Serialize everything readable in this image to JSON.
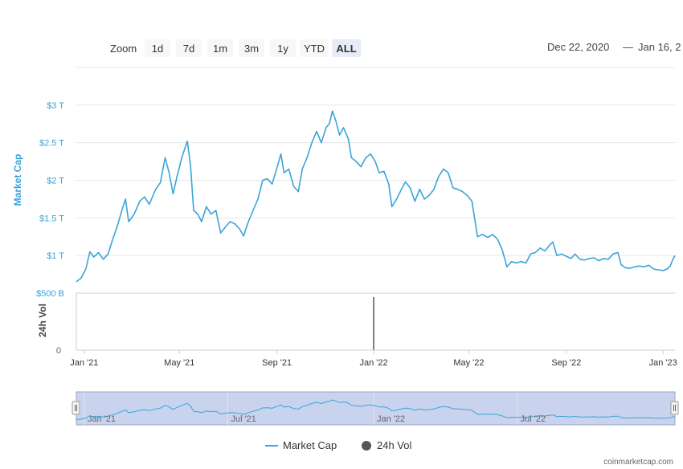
{
  "zoom": {
    "label": "Zoom",
    "buttons": [
      "1d",
      "7d",
      "1m",
      "3m",
      "1y",
      "YTD",
      "ALL"
    ],
    "selected": "ALL"
  },
  "range": {
    "from": "Dec 22, 2020",
    "separator": "—",
    "to": "Jan 16, 2"
  },
  "credit": "coinmarketcap.com",
  "legend": {
    "market_cap": "Market Cap",
    "volume": "24h Vol"
  },
  "colors": {
    "market_cap": "#3aa4d8",
    "volume": "#555555",
    "navigator_fill": "#c9d3ee",
    "grid": "#e6e6e6"
  },
  "chart_data": {
    "type": "line",
    "yaxis_label": "Market Cap",
    "yaxis_ticks": [
      {
        "value": 0.5,
        "label": "$500 B"
      },
      {
        "value": 1.0,
        "label": "$1 T"
      },
      {
        "value": 1.5,
        "label": "$1.5 T"
      },
      {
        "value": 2.0,
        "label": "$2 T"
      },
      {
        "value": 2.5,
        "label": "$2.5 T"
      },
      {
        "value": 3.0,
        "label": "$3 T"
      }
    ],
    "ylim": [
      0.5,
      3.5
    ],
    "volume_axis_label": "24h Vol",
    "volume_ticks": [
      {
        "value": 0,
        "label": "0"
      }
    ],
    "xlim": [
      "2020-12-22",
      "2023-01-16"
    ],
    "x_ticks": [
      {
        "date": "2021-01-01",
        "label": "Jan '21"
      },
      {
        "date": "2021-05-01",
        "label": "May '21"
      },
      {
        "date": "2021-09-01",
        "label": "Sep '21"
      },
      {
        "date": "2022-01-01",
        "label": "Jan '22"
      },
      {
        "date": "2022-05-01",
        "label": "May '22"
      },
      {
        "date": "2022-09-01",
        "label": "Sep '22"
      },
      {
        "date": "2023-01-01",
        "label": "Jan '23"
      }
    ],
    "navigator_ticks": [
      {
        "date": "2021-01-01",
        "label": "Jan '21"
      },
      {
        "date": "2021-07-01",
        "label": "Jul '21"
      },
      {
        "date": "2022-01-01",
        "label": "Jan '22"
      },
      {
        "date": "2022-07-01",
        "label": "Jul '22"
      }
    ],
    "series": [
      {
        "name": "Market Cap",
        "unit": "T",
        "points": [
          [
            "2020-12-22",
            0.65
          ],
          [
            "2020-12-28",
            0.7
          ],
          [
            "2021-01-03",
            0.82
          ],
          [
            "2021-01-08",
            1.05
          ],
          [
            "2021-01-13",
            0.98
          ],
          [
            "2021-01-19",
            1.04
          ],
          [
            "2021-01-25",
            0.95
          ],
          [
            "2021-01-31",
            1.02
          ],
          [
            "2021-02-06",
            1.22
          ],
          [
            "2021-02-12",
            1.4
          ],
          [
            "2021-02-18",
            1.62
          ],
          [
            "2021-02-22",
            1.75
          ],
          [
            "2021-02-26",
            1.45
          ],
          [
            "2021-03-05",
            1.55
          ],
          [
            "2021-03-12",
            1.72
          ],
          [
            "2021-03-18",
            1.78
          ],
          [
            "2021-03-24",
            1.68
          ],
          [
            "2021-04-01",
            1.88
          ],
          [
            "2021-04-07",
            1.97
          ],
          [
            "2021-04-13",
            2.3
          ],
          [
            "2021-04-18",
            2.1
          ],
          [
            "2021-04-23",
            1.82
          ],
          [
            "2021-04-28",
            2.05
          ],
          [
            "2021-05-04",
            2.3
          ],
          [
            "2021-05-11",
            2.52
          ],
          [
            "2021-05-15",
            2.2
          ],
          [
            "2021-05-19",
            1.6
          ],
          [
            "2021-05-24",
            1.55
          ],
          [
            "2021-05-29",
            1.45
          ],
          [
            "2021-06-04",
            1.65
          ],
          [
            "2021-06-10",
            1.55
          ],
          [
            "2021-06-16",
            1.6
          ],
          [
            "2021-06-22",
            1.3
          ],
          [
            "2021-06-28",
            1.38
          ],
          [
            "2021-07-04",
            1.45
          ],
          [
            "2021-07-10",
            1.42
          ],
          [
            "2021-07-16",
            1.35
          ],
          [
            "2021-07-21",
            1.26
          ],
          [
            "2021-07-27",
            1.45
          ],
          [
            "2021-08-02",
            1.6
          ],
          [
            "2021-08-08",
            1.75
          ],
          [
            "2021-08-14",
            2.0
          ],
          [
            "2021-08-20",
            2.02
          ],
          [
            "2021-08-26",
            1.95
          ],
          [
            "2021-09-02",
            2.2
          ],
          [
            "2021-09-06",
            2.35
          ],
          [
            "2021-09-10",
            2.1
          ],
          [
            "2021-09-16",
            2.15
          ],
          [
            "2021-09-22",
            1.92
          ],
          [
            "2021-09-28",
            1.85
          ],
          [
            "2021-10-03",
            2.15
          ],
          [
            "2021-10-09",
            2.3
          ],
          [
            "2021-10-15",
            2.5
          ],
          [
            "2021-10-21",
            2.65
          ],
          [
            "2021-10-27",
            2.5
          ],
          [
            "2021-11-02",
            2.7
          ],
          [
            "2021-11-06",
            2.75
          ],
          [
            "2021-11-10",
            2.92
          ],
          [
            "2021-11-14",
            2.8
          ],
          [
            "2021-11-19",
            2.6
          ],
          [
            "2021-11-24",
            2.7
          ],
          [
            "2021-11-30",
            2.55
          ],
          [
            "2021-12-04",
            2.3
          ],
          [
            "2021-12-10",
            2.25
          ],
          [
            "2021-12-16",
            2.18
          ],
          [
            "2021-12-22",
            2.3
          ],
          [
            "2021-12-28",
            2.35
          ],
          [
            "2022-01-03",
            2.25
          ],
          [
            "2022-01-08",
            2.1
          ],
          [
            "2022-01-14",
            2.12
          ],
          [
            "2022-01-20",
            1.95
          ],
          [
            "2022-01-24",
            1.65
          ],
          [
            "2022-01-30",
            1.75
          ],
          [
            "2022-02-05",
            1.88
          ],
          [
            "2022-02-10",
            1.98
          ],
          [
            "2022-02-16",
            1.9
          ],
          [
            "2022-02-22",
            1.72
          ],
          [
            "2022-02-28",
            1.88
          ],
          [
            "2022-03-06",
            1.75
          ],
          [
            "2022-03-12",
            1.8
          ],
          [
            "2022-03-18",
            1.88
          ],
          [
            "2022-03-24",
            2.05
          ],
          [
            "2022-03-30",
            2.15
          ],
          [
            "2022-04-05",
            2.1
          ],
          [
            "2022-04-11",
            1.9
          ],
          [
            "2022-04-17",
            1.88
          ],
          [
            "2022-04-23",
            1.85
          ],
          [
            "2022-04-29",
            1.8
          ],
          [
            "2022-05-05",
            1.72
          ],
          [
            "2022-05-09",
            1.45
          ],
          [
            "2022-05-12",
            1.25
          ],
          [
            "2022-05-18",
            1.28
          ],
          [
            "2022-05-25",
            1.24
          ],
          [
            "2022-05-31",
            1.28
          ],
          [
            "2022-06-06",
            1.22
          ],
          [
            "2022-06-12",
            1.08
          ],
          [
            "2022-06-18",
            0.85
          ],
          [
            "2022-06-24",
            0.92
          ],
          [
            "2022-06-30",
            0.9
          ],
          [
            "2022-07-06",
            0.92
          ],
          [
            "2022-07-12",
            0.9
          ],
          [
            "2022-07-18",
            1.02
          ],
          [
            "2022-07-24",
            1.04
          ],
          [
            "2022-07-30",
            1.1
          ],
          [
            "2022-08-05",
            1.06
          ],
          [
            "2022-08-11",
            1.14
          ],
          [
            "2022-08-15",
            1.18
          ],
          [
            "2022-08-20",
            1.0
          ],
          [
            "2022-08-26",
            1.02
          ],
          [
            "2022-09-01",
            0.99
          ],
          [
            "2022-09-07",
            0.96
          ],
          [
            "2022-09-12",
            1.02
          ],
          [
            "2022-09-18",
            0.95
          ],
          [
            "2022-09-24",
            0.94
          ],
          [
            "2022-09-30",
            0.96
          ],
          [
            "2022-10-06",
            0.97
          ],
          [
            "2022-10-12",
            0.93
          ],
          [
            "2022-10-18",
            0.96
          ],
          [
            "2022-10-24",
            0.95
          ],
          [
            "2022-10-30",
            1.02
          ],
          [
            "2022-11-05",
            1.04
          ],
          [
            "2022-11-09",
            0.88
          ],
          [
            "2022-11-14",
            0.84
          ],
          [
            "2022-11-20",
            0.83
          ],
          [
            "2022-11-26",
            0.85
          ],
          [
            "2022-12-02",
            0.86
          ],
          [
            "2022-12-08",
            0.85
          ],
          [
            "2022-12-14",
            0.87
          ],
          [
            "2022-12-20",
            0.82
          ],
          [
            "2022-12-26",
            0.81
          ],
          [
            "2023-01-01",
            0.8
          ],
          [
            "2023-01-06",
            0.82
          ],
          [
            "2023-01-10",
            0.86
          ],
          [
            "2023-01-13",
            0.94
          ],
          [
            "2023-01-16",
            1.0
          ]
        ]
      },
      {
        "name": "24h Vol",
        "points": [
          [
            "2022-01-01",
            1
          ]
        ]
      }
    ]
  }
}
